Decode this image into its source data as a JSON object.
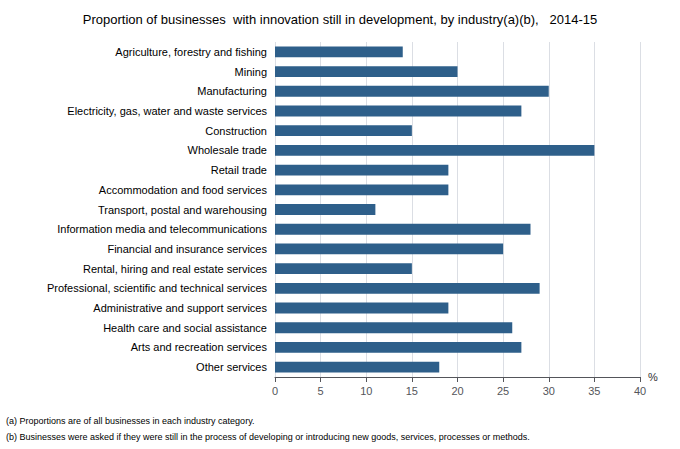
{
  "chart_data": {
    "type": "bar",
    "orientation": "horizontal",
    "title": "Proportion of businesses  with innovation still in development, by industry(a)(b),   2014-15",
    "categories": [
      "Agriculture, forestry and fishing",
      "Mining",
      "Manufacturing",
      "Electricity, gas, water and waste services",
      "Construction",
      "Wholesale trade",
      "Retail trade",
      "Accommodation and food services",
      "Transport, postal and warehousing",
      "Information media and telecommunications",
      "Financial and insurance services",
      "Rental, hiring and real estate services",
      "Professional, scientific and technical services",
      "Administrative and support services",
      "Health care and social assistance",
      "Arts and recreation services",
      "Other services"
    ],
    "values": [
      14,
      20,
      30,
      27,
      15,
      35,
      19,
      19,
      11,
      28,
      25,
      15,
      29,
      19,
      26,
      27,
      18
    ],
    "color": "#2E5F8A",
    "xlabel": "%",
    "xlim": [
      0,
      40
    ],
    "xticks": [
      0,
      5,
      10,
      15,
      20,
      25,
      30,
      35,
      40
    ],
    "grid": true,
    "annotations": [
      "(a) Proportions are of all businesses in each industry category.",
      "(b) Businesses were asked if they were still in the process of developing or introducing new goods, services, processes or methods."
    ]
  }
}
